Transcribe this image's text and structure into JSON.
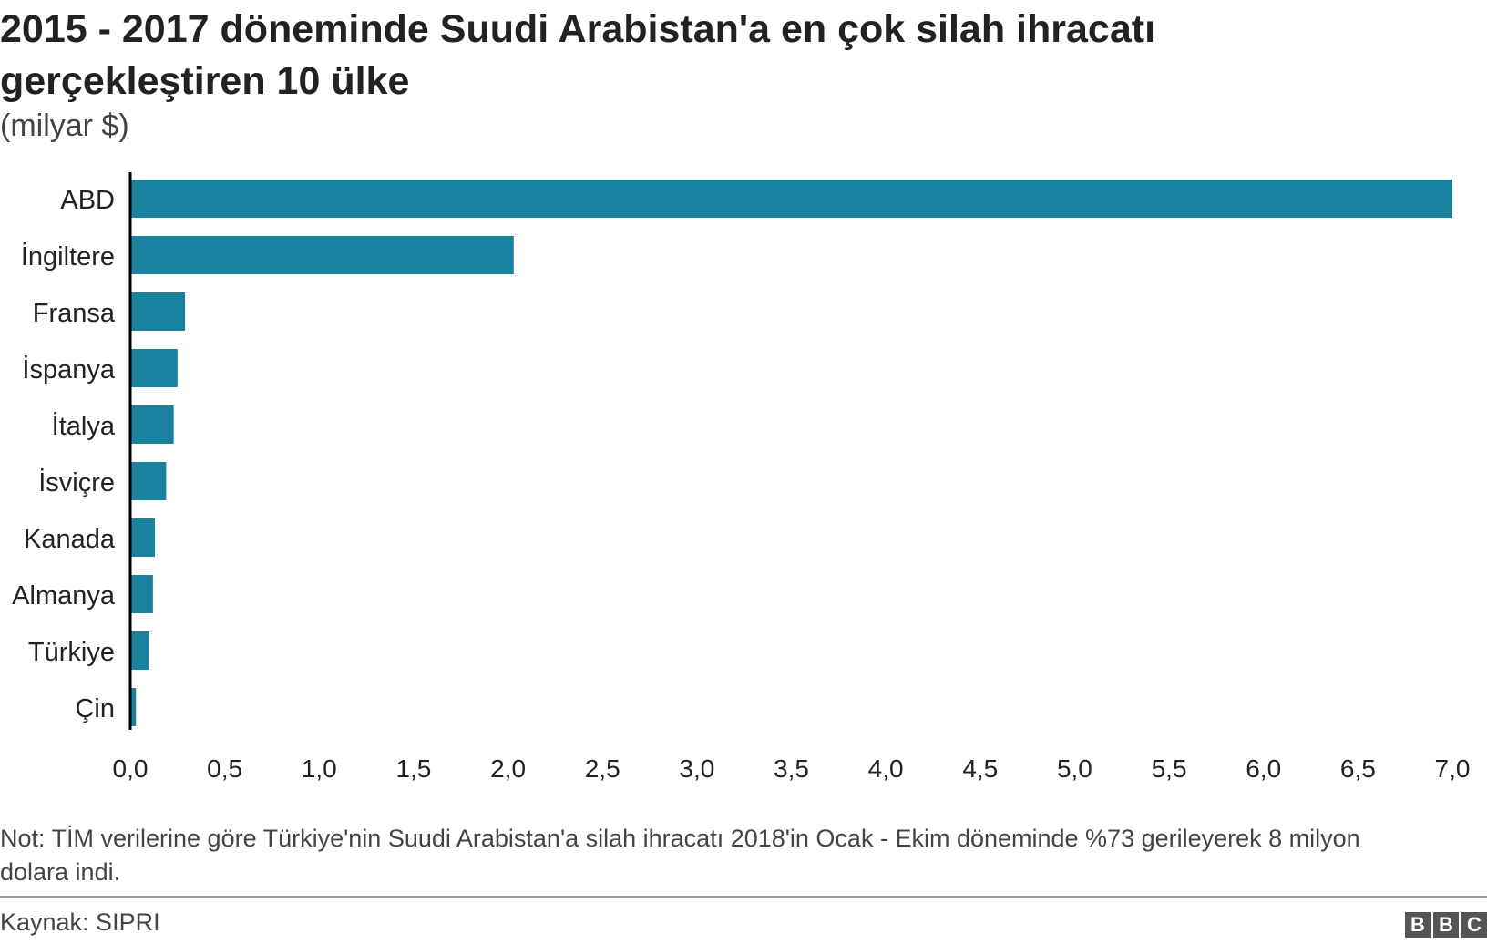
{
  "title": "2015 - 2017 döneminde Suudi Arabistan'a en çok silah ihracatı gerçekleştiren 10 ülke",
  "subtitle": "(milyar $)",
  "note": "Not: TİM verilerine göre Türkiye'nin Suudi Arabistan'a silah ihracatı 2018'in Ocak - Ekim döneminde %73 gerileyerek 8 milyon dolara indi.",
  "source": "Kaynak: SIPRI",
  "logo": {
    "letters": [
      "B",
      "B",
      "C"
    ]
  },
  "colors": {
    "bar": "#17819e",
    "axis": "#000000",
    "text": "#222222"
  },
  "chart_data": {
    "type": "bar",
    "orientation": "horizontal",
    "title": "2015 - 2017 döneminde Suudi Arabistan'a en çok silah ihracatı gerçekleştiren 10 ülke",
    "subtitle": "(milyar $)",
    "categories": [
      "ABD",
      "İngiltere",
      "Fransa",
      "İspanya",
      "İtalya",
      "İsviçre",
      "Kanada",
      "Almanya",
      "Türkiye",
      "Çin"
    ],
    "values": [
      7.0,
      2.03,
      0.29,
      0.25,
      0.23,
      0.19,
      0.13,
      0.12,
      0.1,
      0.03
    ],
    "xlim": [
      0,
      7
    ],
    "xticks": [
      "0,0",
      "0,5",
      "1,0",
      "1,5",
      "2,0",
      "2,5",
      "3,0",
      "3,5",
      "4,0",
      "4,5",
      "5,0",
      "5,5",
      "6,0",
      "6,5",
      "7,0"
    ],
    "grid": false,
    "legend": false
  }
}
